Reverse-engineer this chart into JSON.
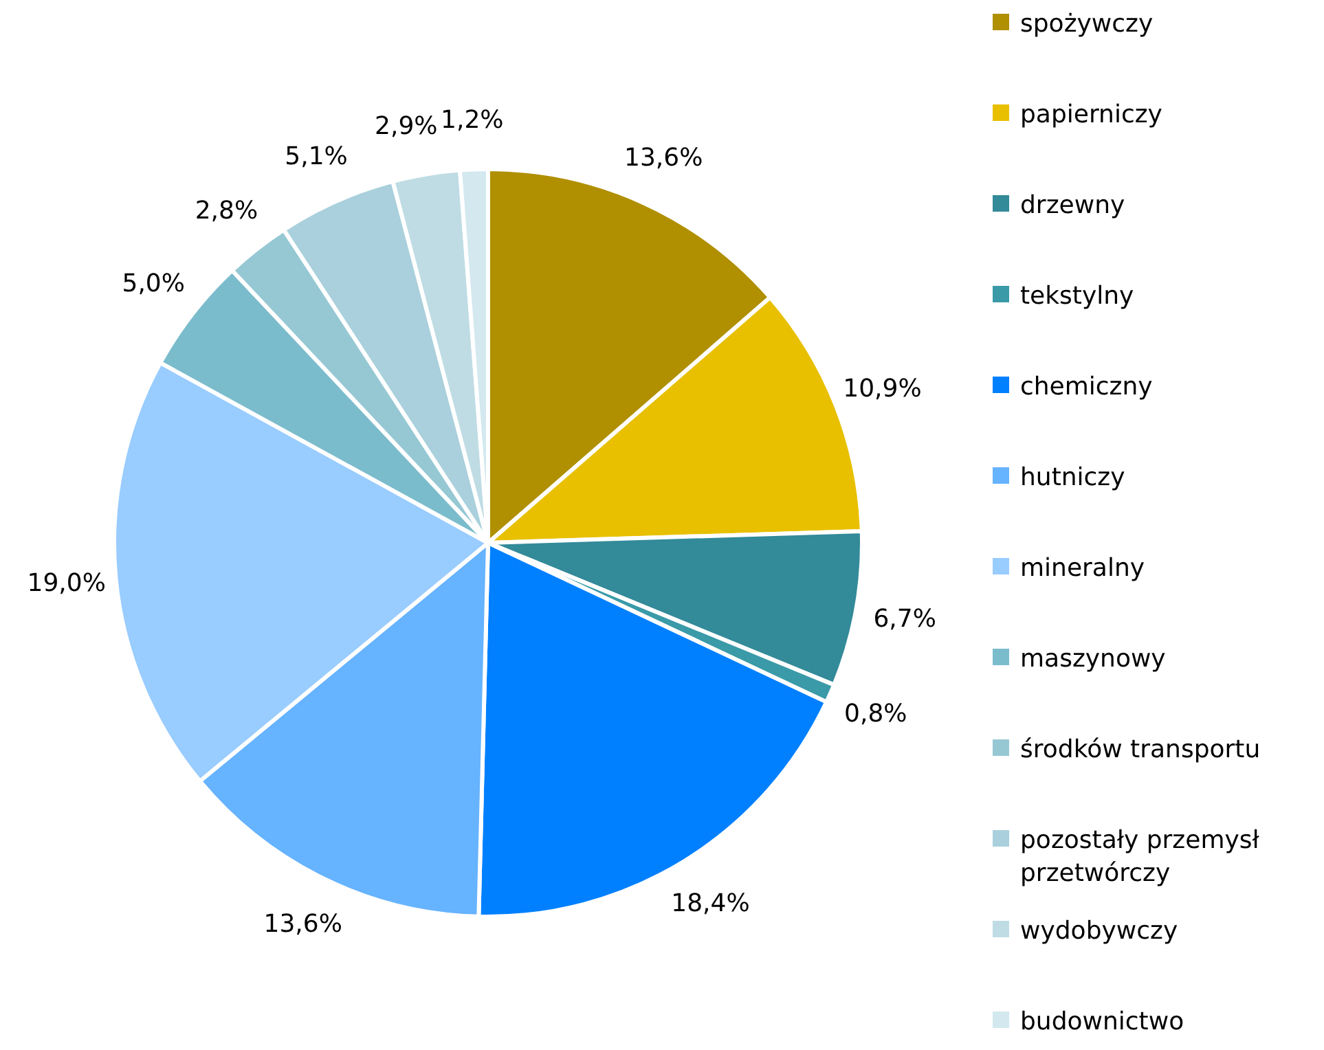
{
  "chart_data": {
    "type": "pie",
    "categories": [
      "spożywczy",
      "papierniczy",
      "drzewny",
      "tekstylny",
      "chemiczny",
      "hutniczy",
      "mineralny",
      "maszynowy",
      "środków transportu",
      "pozostały przemysł przetwórczy",
      "wydobywczy",
      "budownictwo"
    ],
    "values": [
      13.6,
      10.9,
      6.7,
      0.8,
      18.4,
      13.6,
      19.0,
      5.0,
      2.8,
      5.1,
      2.9,
      1.2
    ],
    "colors": [
      "#b08f00",
      "#e8c000",
      "#338a99",
      "#3a9aa8",
      "#0080ff",
      "#66b3ff",
      "#99ccff",
      "#7bbccc",
      "#96c8d4",
      "#a9d0dc",
      "#bfdce4",
      "#d3e8ef"
    ],
    "value_labels": [
      "13,6%",
      "10,9%",
      "6,7%",
      "0,8%",
      "18,4%",
      "13,6%",
      "19,0%",
      "5,0%",
      "2,8%",
      "5,1%",
      "2,9%",
      "1,2%"
    ],
    "legend": "right"
  }
}
